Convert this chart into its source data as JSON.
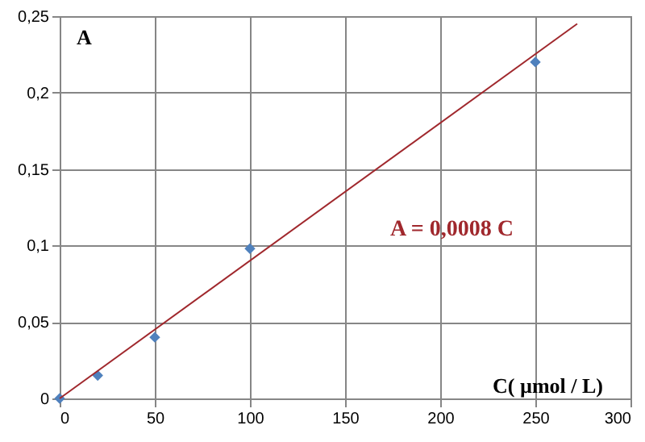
{
  "chart_data": {
    "type": "scatter",
    "xlabel": "C( µmol / L)",
    "ylabel": "A",
    "annotations": [
      "A = 0,0008   C"
    ],
    "series": [
      {
        "color": "#4f81bd",
        "x": [
          0,
          20,
          50,
          100,
          250
        ],
        "values": [
          0,
          0.015,
          0.04,
          0.098,
          0.22
        ],
        "marker": "diamond"
      },
      {
        "type": "line",
        "color": "#a0282d",
        "x": [
          0,
          272
        ],
        "values": [
          0,
          0.245
        ],
        "marker": "none"
      }
    ],
    "xlim": [
      0,
      300
    ],
    "xticks": [
      0,
      50,
      100,
      150,
      200,
      250,
      300
    ],
    "ylim": [
      0,
      0.25
    ],
    "yticks": [
      {
        "value": 0,
        "label": "0"
      },
      {
        "value": 0.05,
        "label": "0,05"
      },
      {
        "value": 0.1,
        "label": "0,1"
      },
      {
        "value": 0.15,
        "label": "0,15"
      },
      {
        "value": 0.2,
        "label": "0,2"
      },
      {
        "value": 0.25,
        "label": "0,25"
      }
    ],
    "grid": true
  }
}
